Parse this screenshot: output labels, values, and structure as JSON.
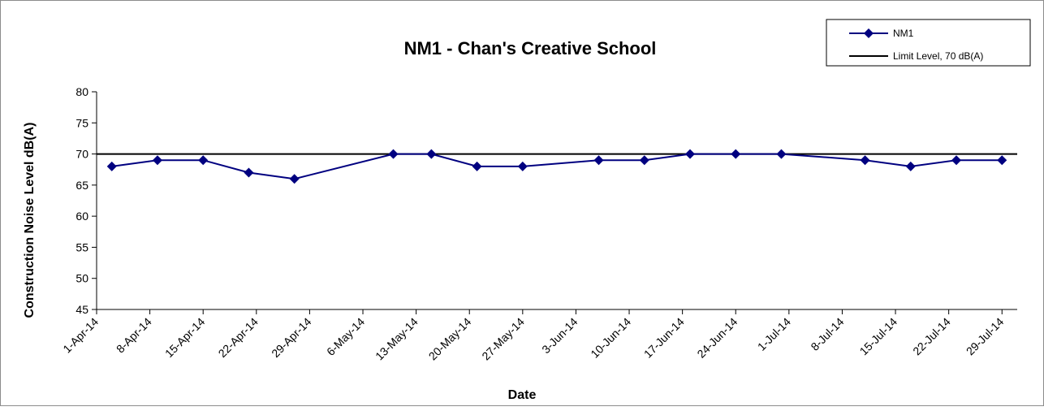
{
  "chart_data": {
    "type": "line",
    "title": "NM1 - Chan's Creative School",
    "xlabel": "Date",
    "ylabel": "Construction Noise Level  dB(A)",
    "ylim": [
      45,
      80
    ],
    "yticks": [
      45,
      50,
      55,
      60,
      65,
      70,
      75,
      80
    ],
    "xlim": [
      "2014-04-01",
      "2014-07-31"
    ],
    "xticks": [
      "2014-04-01",
      "2014-04-08",
      "2014-04-15",
      "2014-04-22",
      "2014-04-29",
      "2014-05-06",
      "2014-05-13",
      "2014-05-20",
      "2014-05-27",
      "2014-06-03",
      "2014-06-10",
      "2014-06-17",
      "2014-06-24",
      "2014-07-01",
      "2014-07-08",
      "2014-07-15",
      "2014-07-22",
      "2014-07-29"
    ],
    "xtick_labels": [
      "1-Apr-14",
      "8-Apr-14",
      "15-Apr-14",
      "22-Apr-14",
      "29-Apr-14",
      "6-May-14",
      "13-May-14",
      "20-May-14",
      "27-May-14",
      "3-Jun-14",
      "10-Jun-14",
      "17-Jun-14",
      "24-Jun-14",
      "1-Jul-14",
      "8-Jul-14",
      "15-Jul-14",
      "22-Jul-14",
      "29-Jul-14"
    ],
    "grid": false,
    "legend_position": "top-right",
    "series": [
      {
        "name": "NM1",
        "color": "#000080",
        "marker": "diamond",
        "x": [
          "2014-04-03",
          "2014-04-09",
          "2014-04-15",
          "2014-04-21",
          "2014-04-27",
          "2014-05-10",
          "2014-05-15",
          "2014-05-21",
          "2014-05-27",
          "2014-06-06",
          "2014-06-12",
          "2014-06-18",
          "2014-06-24",
          "2014-06-30",
          "2014-07-11",
          "2014-07-17",
          "2014-07-23",
          "2014-07-29"
        ],
        "values": [
          68,
          69,
          69,
          67,
          66,
          70,
          70,
          68,
          68,
          69,
          69,
          70,
          70,
          70,
          69,
          68,
          69,
          69
        ]
      },
      {
        "name": "Limit Level, 70 dB(A)",
        "color": "#000000",
        "x": [
          "2014-04-01",
          "2014-07-31"
        ],
        "values": [
          70,
          70
        ]
      }
    ]
  }
}
